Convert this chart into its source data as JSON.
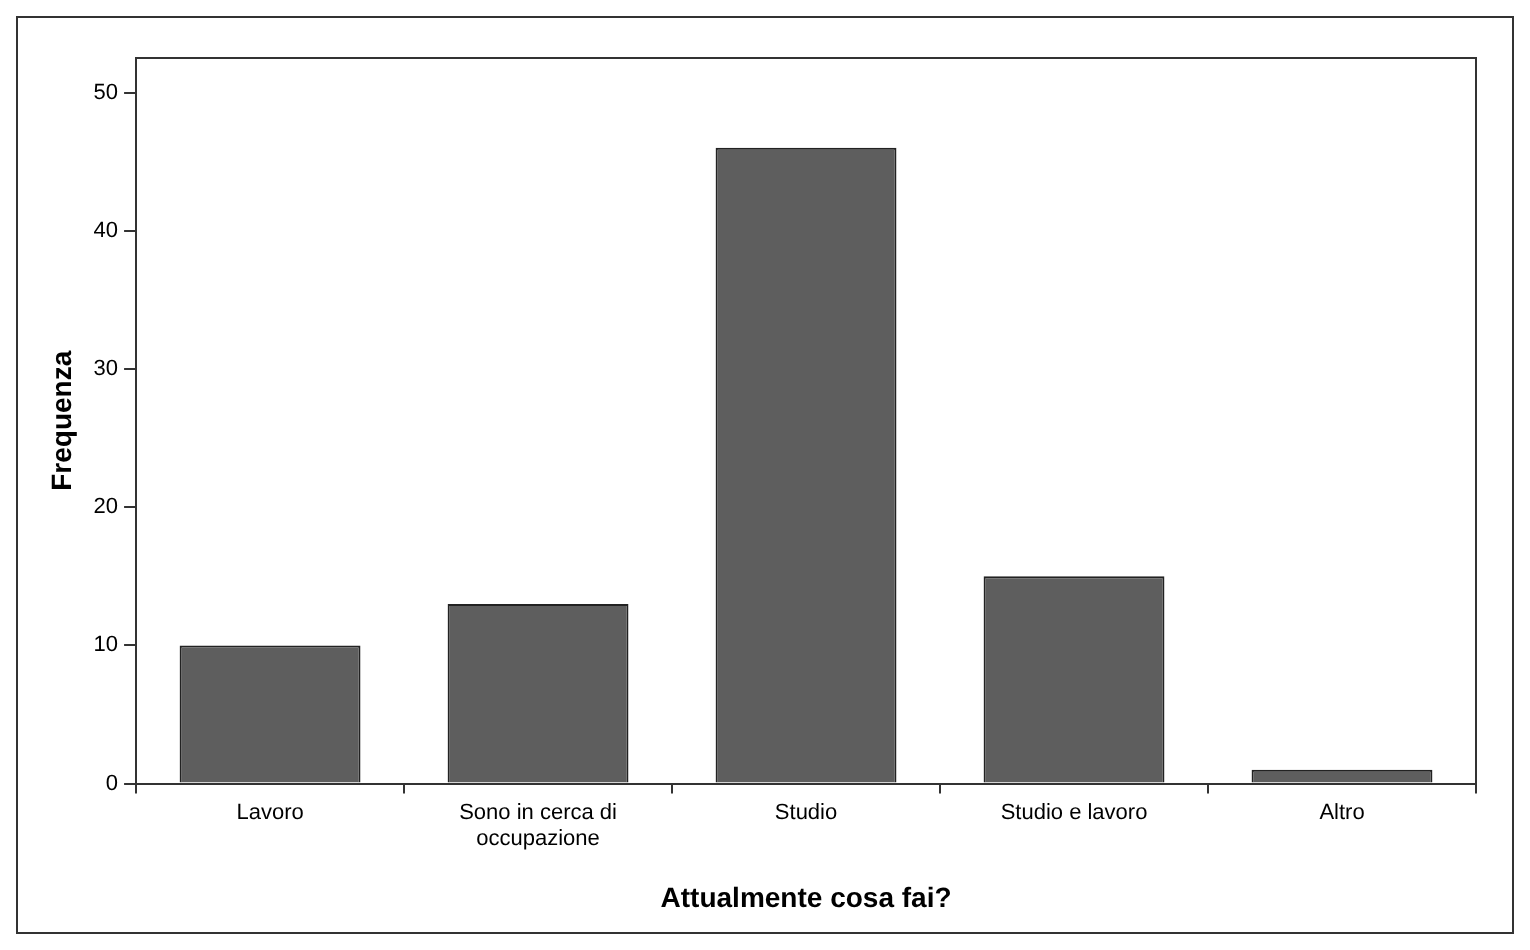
{
  "chart_data": {
    "type": "bar",
    "xlabel": "Attualmente cosa fai?",
    "ylabel": "Frequenza",
    "categories": [
      "Lavoro",
      "Sono in cerca di occupazione",
      "Studio",
      "Studio e lavoro",
      "Altro"
    ],
    "values": [
      10,
      13,
      46,
      15,
      1
    ],
    "color": "#5e5e5e",
    "ylim": [
      0,
      52.5
    ],
    "yticks": [
      0,
      10,
      20,
      30,
      40,
      50
    ],
    "grid": false,
    "legend": false
  }
}
